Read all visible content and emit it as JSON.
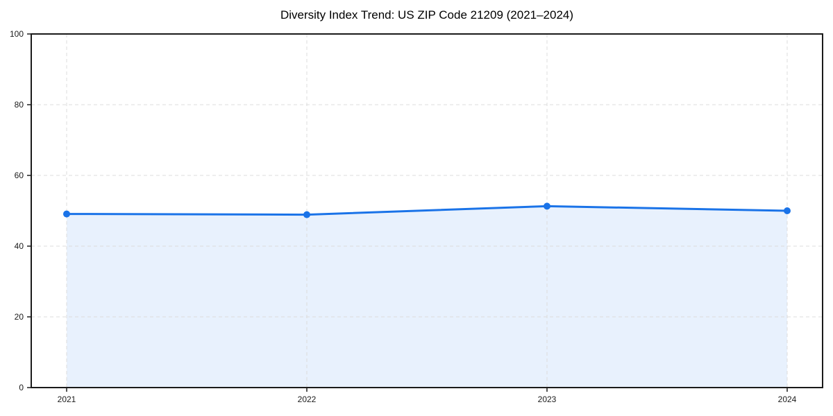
{
  "chart_data": {
    "type": "area",
    "title": "Diversity Index Trend: US ZIP Code 21209 (2021–2024)",
    "categories": [
      "2021",
      "2022",
      "2023",
      "2024"
    ],
    "series": [
      {
        "name": "Diversity Index",
        "values": [
          49.1,
          48.9,
          51.3,
          50.0
        ]
      }
    ],
    "xlabel": "",
    "ylabel": "",
    "ylim": [
      0,
      100
    ],
    "yticks": [
      0,
      20,
      40,
      60,
      80,
      100
    ],
    "grid": true,
    "grid_style": "dashed",
    "legend_position": "none",
    "marker": "circle",
    "colors": {
      "line": "#1a73e8",
      "marker": "#1a73e8",
      "fill": "#e8f1fd",
      "grid": "#dcdcdc",
      "axis": "#1a1a1a",
      "tick_text": "#1a1a1a",
      "title_text": "#000000",
      "background": "#ffffff"
    }
  }
}
